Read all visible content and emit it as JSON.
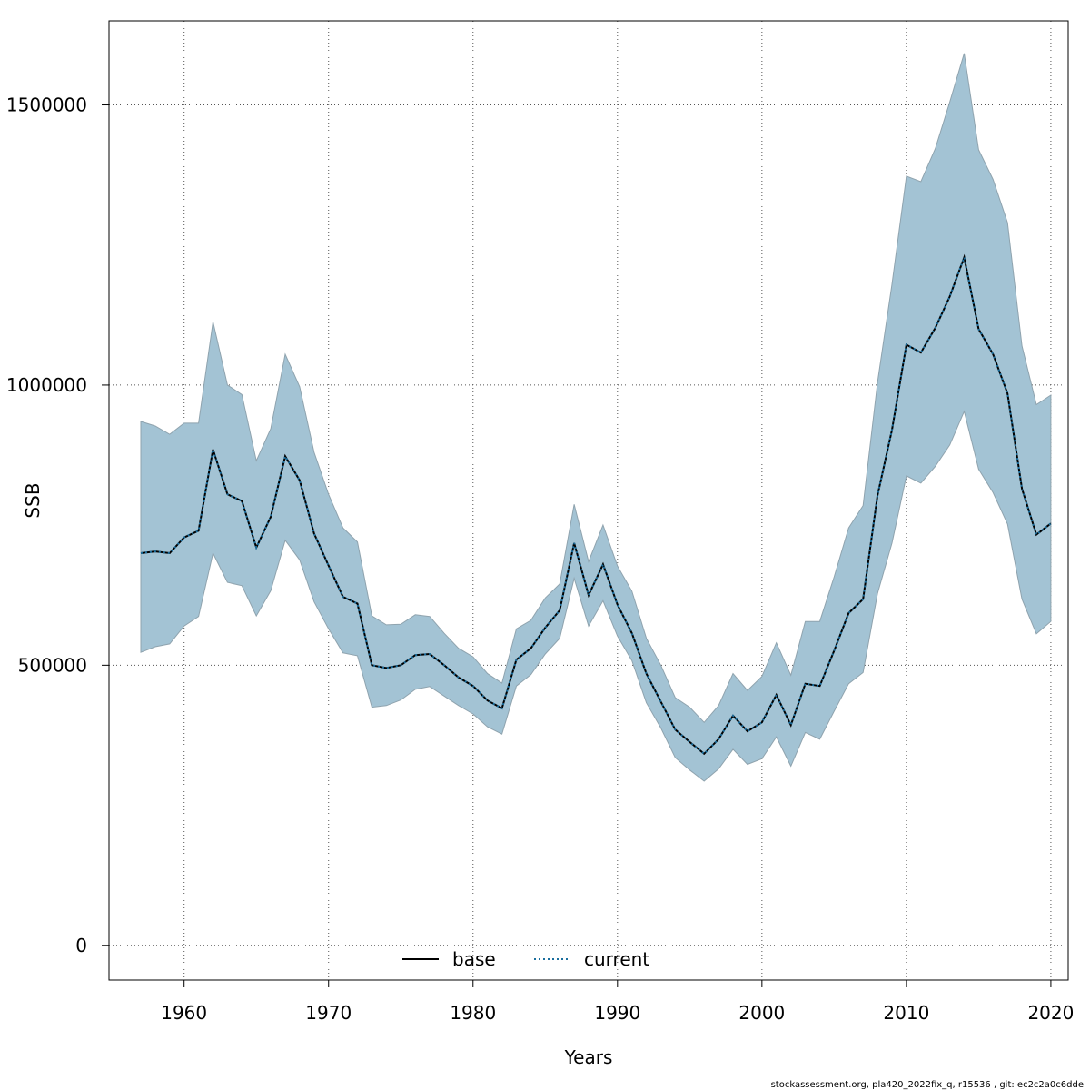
{
  "colors": {
    "band_fill": "#a3c3d4",
    "band_stroke": "#8fa3ae",
    "base_line": "#000000",
    "current_line": "#1a6e9e",
    "grid": "#555555"
  },
  "footer": {
    "note": "stockassessment.org, pla420_2022fix_q, r15536 , git: ec2c2a0c6dde"
  },
  "chart_data": {
    "type": "line",
    "xlabel": "Years",
    "ylabel": "SSB",
    "xlim": [
      1954.8,
      2021.2
    ],
    "ylim": [
      -62000,
      1650000
    ],
    "xticks": [
      1960,
      1970,
      1980,
      1990,
      2000,
      2010,
      2020
    ],
    "yticks": [
      0,
      500000,
      1000000,
      1500000
    ],
    "ytick_labels": [
      "0",
      "500000",
      "1000000",
      "1500000"
    ],
    "grid": true,
    "legend": {
      "placement": "bottom",
      "entries": [
        "base",
        "current"
      ]
    },
    "x": [
      1957,
      1958,
      1959,
      1960,
      1961,
      1962,
      1963,
      1964,
      1965,
      1966,
      1967,
      1968,
      1969,
      1970,
      1971,
      1972,
      1973,
      1974,
      1975,
      1976,
      1977,
      1978,
      1979,
      1980,
      1981,
      1982,
      1983,
      1984,
      1985,
      1986,
      1987,
      1988,
      1989,
      1990,
      1991,
      1992,
      1993,
      1994,
      1995,
      1996,
      1997,
      1998,
      1999,
      2000,
      2001,
      2002,
      2003,
      2004,
      2005,
      2006,
      2007,
      2008,
      2009,
      2010,
      2011,
      2012,
      2013,
      2014,
      2015,
      2016,
      2017,
      2018,
      2019,
      2020
    ],
    "series": [
      {
        "name": "base",
        "style": "solid",
        "values": [
          700000,
          703000,
          700000,
          728000,
          740000,
          885000,
          805000,
          793000,
          710000,
          765000,
          873000,
          830000,
          735000,
          678000,
          622000,
          610000,
          500000,
          495000,
          500000,
          518000,
          520000,
          500000,
          478000,
          463000,
          437000,
          423000,
          510000,
          530000,
          567000,
          598000,
          718000,
          625000,
          680000,
          608000,
          557000,
          485000,
          435000,
          385000,
          363000,
          342000,
          368000,
          410000,
          382000,
          398000,
          447000,
          393000,
          467000,
          463000,
          526000,
          593000,
          618000,
          803000,
          920000,
          1072000,
          1058000,
          1102000,
          1158000,
          1228000,
          1100000,
          1055000,
          985000,
          815000,
          733000,
          753000
        ]
      },
      {
        "name": "current",
        "style": "dotted",
        "values": [
          700000,
          703000,
          700000,
          728000,
          740000,
          885000,
          805000,
          793000,
          710000,
          765000,
          873000,
          830000,
          735000,
          678000,
          622000,
          610000,
          500000,
          495000,
          500000,
          518000,
          520000,
          500000,
          478000,
          463000,
          437000,
          423000,
          510000,
          530000,
          567000,
          598000,
          718000,
          625000,
          680000,
          608000,
          557000,
          485000,
          435000,
          385000,
          363000,
          342000,
          368000,
          410000,
          382000,
          398000,
          447000,
          393000,
          467000,
          463000,
          526000,
          593000,
          618000,
          803000,
          920000,
          1072000,
          1058000,
          1102000,
          1158000,
          1228000,
          1100000,
          1055000,
          985000,
          815000,
          733000,
          753000
        ]
      }
    ],
    "band": {
      "upper": [
        935000,
        927000,
        912000,
        932000,
        932000,
        1113000,
        1000000,
        983000,
        865000,
        922000,
        1055000,
        997000,
        880000,
        805000,
        745000,
        720000,
        588000,
        572000,
        573000,
        590000,
        587000,
        557000,
        530000,
        515000,
        485000,
        468000,
        565000,
        580000,
        620000,
        645000,
        787000,
        685000,
        750000,
        677000,
        632000,
        548000,
        500000,
        442000,
        425000,
        398000,
        428000,
        485000,
        455000,
        480000,
        540000,
        482000,
        578000,
        578000,
        658000,
        745000,
        785000,
        1005000,
        1180000,
        1373000,
        1363000,
        1422000,
        1505000,
        1592000,
        1420000,
        1367000,
        1290000,
        1070000,
        965000,
        982000
      ],
      "lower": [
        523000,
        533000,
        538000,
        570000,
        587000,
        700000,
        648000,
        642000,
        588000,
        633000,
        723000,
        688000,
        613000,
        565000,
        522000,
        517000,
        425000,
        428000,
        438000,
        457000,
        462000,
        445000,
        428000,
        413000,
        390000,
        377000,
        463000,
        483000,
        520000,
        548000,
        655000,
        570000,
        615000,
        552000,
        508000,
        433000,
        388000,
        335000,
        313000,
        293000,
        315000,
        350000,
        323000,
        333000,
        372000,
        320000,
        380000,
        368000,
        418000,
        467000,
        487000,
        628000,
        718000,
        838000,
        825000,
        855000,
        893000,
        953000,
        850000,
        808000,
        752000,
        618000,
        556000,
        578000
      ]
    }
  }
}
